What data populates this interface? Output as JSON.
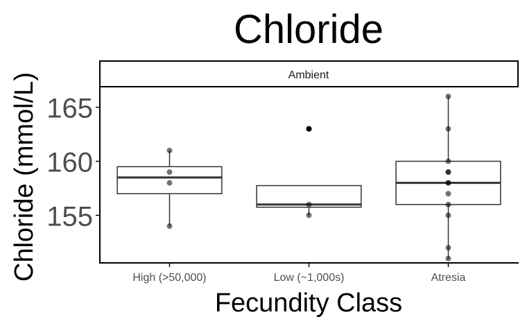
{
  "chart_data": {
    "type": "box",
    "title": "Chloride",
    "facet_label": "Ambient",
    "xlabel": "Fecundity Class",
    "ylabel": "Chloride (mmol/L)",
    "categories": [
      "High (>50,000)",
      "Low (~1,000s)",
      "Atresia"
    ],
    "yticks": [
      155,
      160,
      165
    ],
    "ylim": [
      150.6,
      166.9
    ],
    "boxes": [
      {
        "category": "High (>50,000)",
        "q1": 157.0,
        "median": 158.5,
        "q3": 159.5,
        "whisker_low": 154,
        "whisker_high": 161,
        "outliers": []
      },
      {
        "category": "Low (~1,000s)",
        "q1": 155.75,
        "median": 156.0,
        "q3": 157.75,
        "whisker_low": 155,
        "whisker_high": 157.75,
        "outliers": [
          163
        ]
      },
      {
        "category": "Atresia",
        "q1": 156.0,
        "median": 158.0,
        "q3": 160.0,
        "whisker_low": 151,
        "whisker_high": 166,
        "outliers": []
      }
    ],
    "points": [
      {
        "category": "High (>50,000)",
        "values": [
          161,
          159,
          158,
          154
        ]
      },
      {
        "category": "Low (~1,000s)",
        "values": [
          163,
          156,
          155
        ]
      },
      {
        "category": "Atresia",
        "values": [
          166,
          163,
          160,
          159,
          159,
          158,
          158,
          157,
          156,
          155,
          152,
          151
        ]
      }
    ],
    "grid": false,
    "colors": {
      "box_stroke": "#333333",
      "point": "#000000",
      "axis": "#000000",
      "tick_label": "#4d4d4d"
    }
  }
}
